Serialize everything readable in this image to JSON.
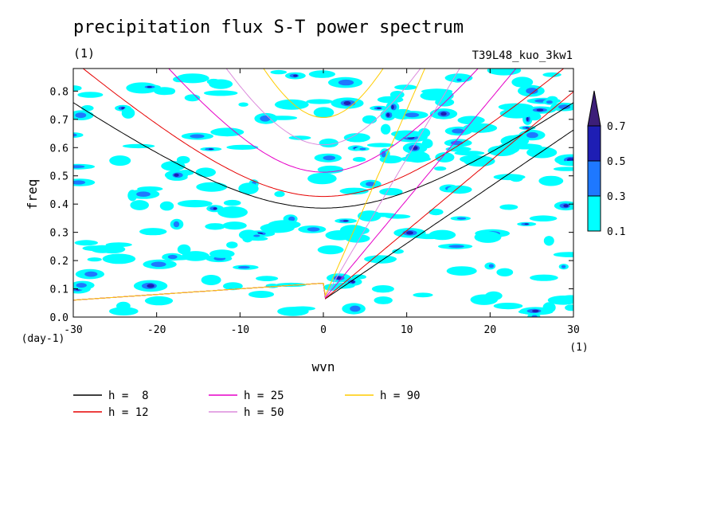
{
  "title": "precipitation flux S-T power spectrum",
  "subtitle": "(1)",
  "run_label": "T39L48_kuo_3kw1",
  "chart_data": {
    "type": "heatmap",
    "xlabel": "wvn",
    "ylabel": "freq",
    "x_unit": "(1)",
    "y_unit": "(day-1)",
    "xlim": [
      -30,
      30
    ],
    "ylim": [
      0.0,
      0.88
    ],
    "x_ticks": [
      -30,
      -20,
      -10,
      0,
      10,
      20,
      30
    ],
    "y_ticks": [
      0.0,
      0.1,
      0.2,
      0.3,
      0.4,
      0.5,
      0.6,
      0.7,
      0.8
    ],
    "x_tick_labels": [
      "-30",
      "-20",
      "-10",
      "0",
      "10",
      "20",
      "30"
    ],
    "y_tick_labels": [
      "0.0",
      "0.1",
      "0.2",
      "0.3",
      "0.4",
      "0.5",
      "0.6",
      "0.7",
      "0.8"
    ],
    "colorbar": {
      "levels": [
        0.1,
        0.3,
        0.5,
        0.7
      ],
      "labels": [
        "0.1",
        "0.3",
        "0.5",
        "0.7"
      ],
      "colors": [
        "#00ffff",
        "#1e78ff",
        "#1e1eb4",
        "#3c1e78"
      ]
    },
    "dispersion_curves": [
      {
        "label": "h =  8",
        "h": 8,
        "color": "#000000"
      },
      {
        "label": "h = 12",
        "h": 12,
        "color": "#e60000"
      },
      {
        "label": "h = 25",
        "h": 25,
        "color": "#e600c8"
      },
      {
        "label": "h = 50",
        "h": 50,
        "color": "#dc8cdc"
      },
      {
        "label": "h = 90",
        "h": 90,
        "color": "#ffcc00"
      }
    ],
    "grid": false
  }
}
